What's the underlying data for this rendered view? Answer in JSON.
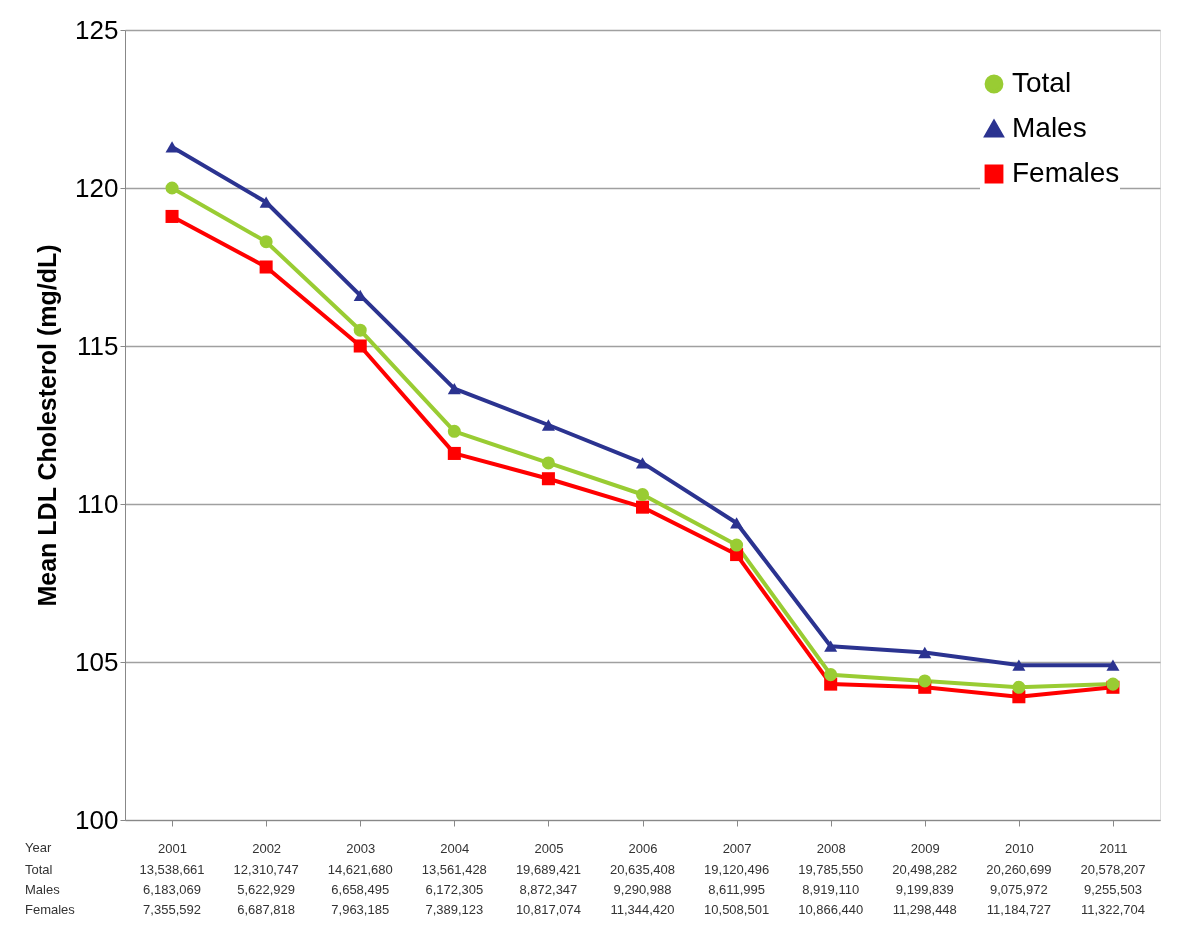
{
  "chart_data": {
    "type": "line",
    "ylabel": "Mean LDL Cholesterol (mg/dL)",
    "xlabel": "Year",
    "categories": [
      "2001",
      "2002",
      "2003",
      "2004",
      "2005",
      "2006",
      "2007",
      "2008",
      "2009",
      "2010",
      "2011"
    ],
    "series": [
      {
        "name": "Total",
        "color": "#99cc33",
        "marker": "circle",
        "values": [
          120.0,
          118.3,
          115.5,
          112.3,
          111.3,
          110.3,
          108.7,
          104.6,
          104.4,
          104.2,
          104.3
        ]
      },
      {
        "name": "Males",
        "color": "#2b3390",
        "marker": "triangle",
        "values": [
          121.3,
          119.55,
          116.6,
          113.65,
          112.5,
          111.3,
          109.4,
          105.5,
          105.3,
          104.9,
          104.9
        ]
      },
      {
        "name": "Females",
        "color": "#ff0000",
        "marker": "square",
        "values": [
          119.1,
          117.5,
          115.0,
          111.6,
          110.8,
          109.9,
          108.4,
          104.3,
          104.2,
          103.9,
          104.2
        ]
      }
    ],
    "ylim": [
      100,
      125
    ],
    "yticks": [
      100,
      105,
      110,
      115,
      120,
      125
    ],
    "grid": "y",
    "legend": "top right",
    "annotations": [
      "Total",
      "13,538,661",
      "12,310,747",
      "14,621,680",
      "13,561,428",
      "19,689,421",
      "20,635,408",
      "19,120,496",
      "19,785,550",
      "20,498,282",
      "20,260,699",
      "20,578,207",
      "Males",
      "6,183,069",
      "5,622,929",
      "6,658,495",
      "6,172,305",
      "8,872,347",
      "9,290,988",
      "8,611,995",
      "8,919,110",
      "9,199,839",
      "9,075,972",
      "9,255,503",
      "Females",
      "7,355,592",
      "6,687,818",
      "7,963,185",
      "7,389,123",
      "10,817,074",
      "11,344,420",
      "10,508,501",
      "10,866,440",
      "11,298,448",
      "11,184,727",
      "11,322,704"
    ]
  }
}
